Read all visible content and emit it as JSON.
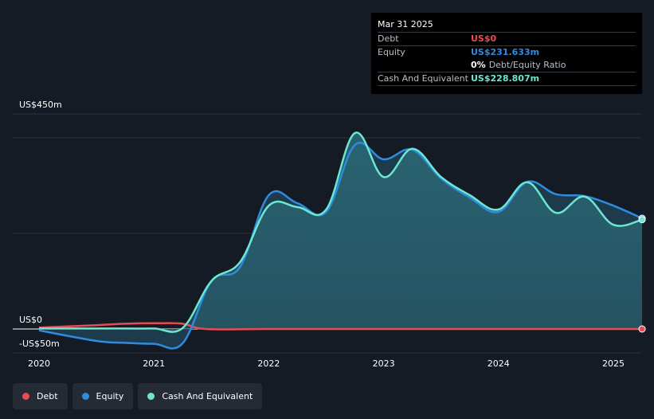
{
  "tooltip": {
    "date": "Mar 31 2025",
    "rows": {
      "debt_label": "Debt",
      "debt_value": "US$0",
      "equity_label": "Equity",
      "equity_value": "US$231.633m",
      "ratio_value": "0%",
      "ratio_label": "Debt/Equity Ratio",
      "cash_label": "Cash And Equivalent",
      "cash_value": "US$228.807m"
    }
  },
  "colors": {
    "debt": "#e64c54",
    "equity": "#2f8be0",
    "cash": "#6ce7d0",
    "area_fill": "#2a6673",
    "background": "#151b24"
  },
  "chart_data": {
    "type": "area",
    "ylim": [
      -50,
      450
    ],
    "y_tick_labels": [
      "US$450m",
      "US$0",
      "-US$50m"
    ],
    "x_ticks": [
      "2020",
      "2021",
      "2022",
      "2023",
      "2024",
      "2025"
    ],
    "x_range": [
      2019.8,
      2025.25
    ],
    "series": [
      {
        "name": "Debt",
        "x": [
          2020.0,
          2020.5,
          2020.75,
          2021.0,
          2021.25,
          2021.45,
          2022.0,
          2023.0,
          2024.0,
          2025.0,
          2025.25
        ],
        "values": [
          3,
          8,
          11,
          12,
          11,
          0,
          0,
          0,
          0,
          0,
          0
        ]
      },
      {
        "name": "Equity",
        "x": [
          2020.0,
          2020.5,
          2020.75,
          2021.0,
          2021.25,
          2021.5,
          2021.75,
          2022.0,
          2022.25,
          2022.5,
          2022.75,
          2023.0,
          2023.25,
          2023.5,
          2023.75,
          2024.0,
          2024.25,
          2024.5,
          2024.75,
          2025.0,
          2025.25
        ],
        "values": [
          -3,
          -25,
          -29,
          -31,
          -30,
          100,
          130,
          280,
          263,
          245,
          385,
          355,
          375,
          315,
          275,
          245,
          308,
          282,
          278,
          258,
          231.633
        ]
      },
      {
        "name": "Cash And Equivalent",
        "x": [
          2020.0,
          2020.5,
          2020.75,
          2021.0,
          2021.25,
          2021.5,
          2021.75,
          2022.0,
          2022.25,
          2022.5,
          2022.75,
          2023.0,
          2023.25,
          2023.5,
          2023.75,
          2024.0,
          2024.25,
          2024.5,
          2024.75,
          2025.0,
          2025.25
        ],
        "values": [
          1,
          1,
          1,
          1,
          2,
          100,
          140,
          258,
          255,
          250,
          410,
          318,
          377,
          318,
          280,
          250,
          307,
          243,
          277,
          218,
          228.807
        ]
      }
    ]
  },
  "legend": {
    "debt": "Debt",
    "equity": "Equity",
    "cash": "Cash And Equivalent"
  }
}
